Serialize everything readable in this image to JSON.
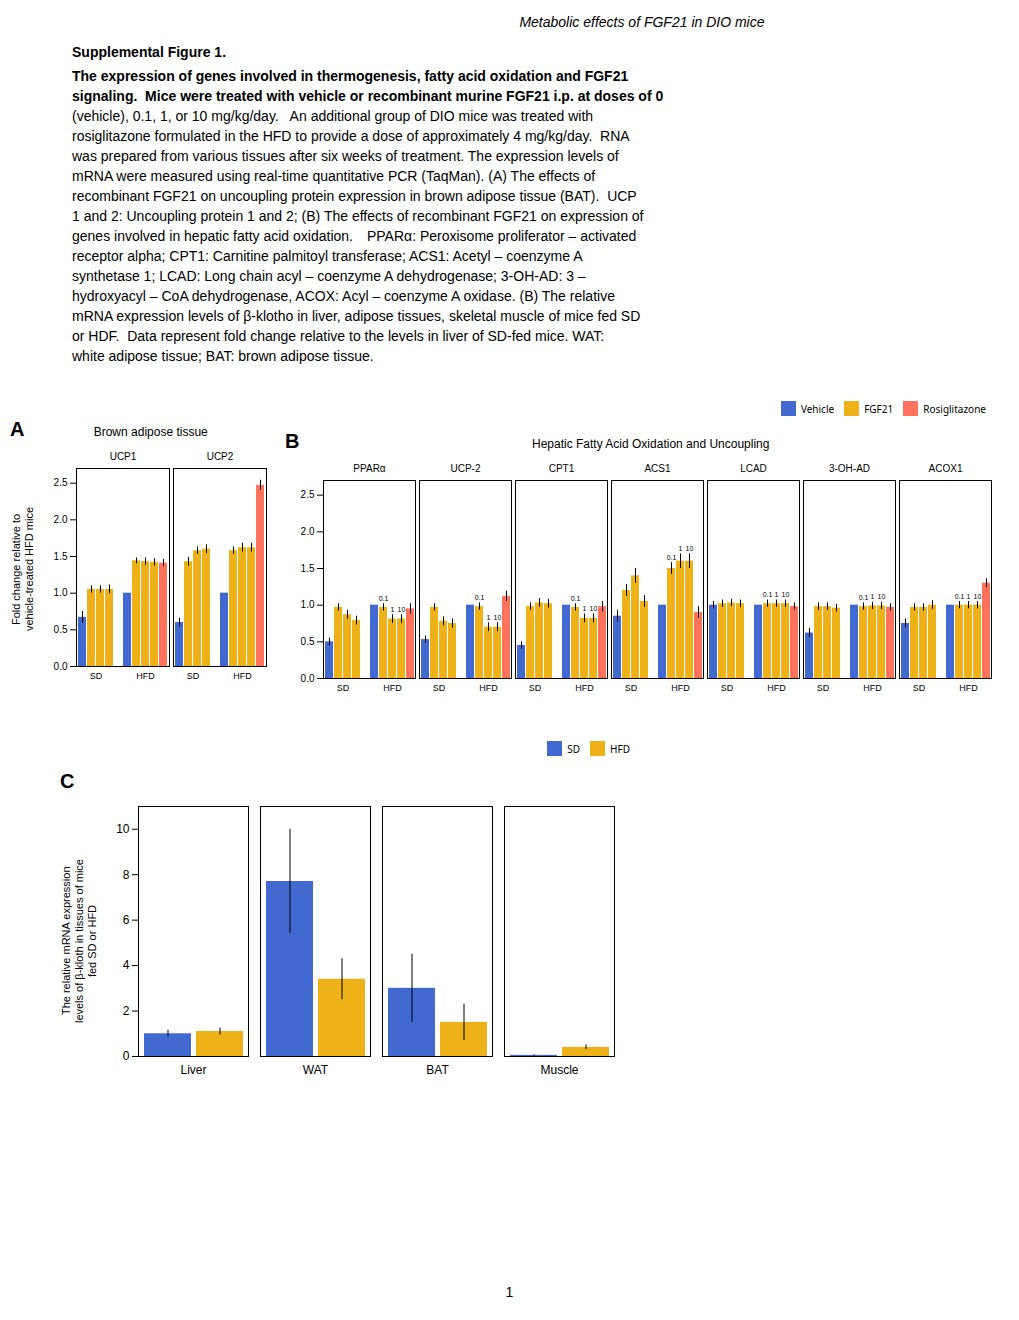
{
  "title": "Metabolic effects of FGF21 in DIO mice",
  "subtitle": "Supplemental Figure 1.",
  "caption_bold": [
    "The expression of genes involved in thermogenesis, fatty acid oxidation and FGF21",
    "signaling.  Mice were treated with vehicle or recombinant murine FGF21 i.p. at doses of 0"
  ],
  "caption": [
    "(vehicle), 0.1, 1, or 10 mg/kg/day.   An additional group of DIO mice was treated with",
    "rosiglitazone formulated in the HFD to provide a dose of approximately 4 mg/kg/day.  RNA",
    "was prepared from various tissues after six weeks of treatment. The expression levels of",
    "mRNA were measured using real-time quantitative PCR (TaqMan). (A) The effects of",
    "recombinant FGF21 on uncoupling protein expression in brown adipose tissue (BAT).  UCP",
    "1 and 2: Uncoupling protein 1 and 2; (B) The effects of recombinant FGF21 on expression of",
    "genes involved in hepatic fatty acid oxidation. PPARα: Peroxisome proliferator – activated",
    "receptor alpha; CPT1: Carnitine palmitoyl transferase; ACS1: Acetyl – coenzyme A",
    "synthetase 1; LCAD: Long chain acyl – coenzyme A dehydrogenase; 3-OH-AD: 3 –",
    "hydroxyacyl – CoA dehydrogenase, ACOX: Acyl – coenzyme A oxidase. (B) The relative",
    "mRNA expression levels of β-klotho in liver, adipose tissues, skeletal muscle of mice fed SD",
    "or HDF.  Data represent fold change relative to the levels in liver of SD-fed mice. WAT:",
    "white adipose tissue; BAT: brown adipose tissue."
  ],
  "page_number": "1",
  "chart_data": [
    {
      "type": "bar",
      "panel_label": "A",
      "title": "Brown adipose tissue",
      "ylabel": "Fold change relative to\nvehicle-treated HFD mice",
      "ylim": [
        0,
        2.7
      ],
      "yticks": [
        {
          "value": 0,
          "label": "0.0"
        },
        0.5,
        {
          "value": 1,
          "label": "1.0"
        },
        1.5,
        {
          "value": 2,
          "label": "2.0"
        },
        2.5
      ],
      "categories": [
        "UCP1",
        "UCP2"
      ],
      "series": [
        {
          "name": "SD",
          "treatments": [
            "Vehicle",
            "FGF21",
            "FGF21",
            "FGF21"
          ],
          "values": [
            [
              0.67,
              1.05,
              1.05,
              1.05
            ],
            [
              0.6,
              1.43,
              1.58,
              1.6
            ]
          ],
          "errors": [
            [
              0.08,
              0.05,
              0.05,
              0.06
            ],
            [
              0.06,
              0.06,
              0.05,
              0.06
            ]
          ]
        },
        {
          "name": "HFD",
          "treatments": [
            "Vehicle",
            "FGF21",
            "FGF21",
            "FGF21",
            "Rosiglitazone"
          ],
          "values": [
            [
              1.0,
              1.44,
              1.43,
              1.42,
              1.41
            ],
            [
              1.0,
              1.58,
              1.62,
              1.62,
              2.47
            ]
          ],
          "errors": [
            [
              0.0,
              0.04,
              0.05,
              0.05,
              0.05
            ],
            [
              0.0,
              0.05,
              0.06,
              0.06,
              0.07
            ]
          ]
        }
      ]
    },
    {
      "type": "bar",
      "panel_label": "B",
      "title": "Hepatic Fatty Acid Oxidation and Uncoupling",
      "legend": "upper right",
      "ylim": [
        0,
        2.7
      ],
      "yticks": [
        {
          "value": 0,
          "label": "0.0"
        },
        0.5,
        {
          "value": 1,
          "label": "1.0"
        },
        1.5,
        {
          "value": 2,
          "label": "2.0"
        },
        2.5
      ],
      "categories": [
        "PPARα",
        "UCP-2",
        "CPT1",
        "ACS1",
        "LCAD",
        "3-OH-AD",
        "ACOX1"
      ],
      "series": [
        {
          "name": "SD",
          "treatments": [
            "Vehicle",
            "FGF21",
            "FGF21",
            "FGF21"
          ],
          "values": [
            [
              0.5,
              0.97,
              0.87,
              0.79
            ],
            [
              0.53,
              0.97,
              0.78,
              0.75
            ],
            [
              0.45,
              0.98,
              1.03,
              1.02
            ],
            [
              0.85,
              1.2,
              1.4,
              1.05
            ],
            [
              1.0,
              1.02,
              1.03,
              1.02
            ],
            [
              0.62,
              0.98,
              0.98,
              0.96
            ],
            [
              0.75,
              0.97,
              0.97,
              1.0
            ]
          ],
          "errors": [
            [
              0.05,
              0.05,
              0.06,
              0.06
            ],
            [
              0.05,
              0.05,
              0.06,
              0.06
            ],
            [
              0.05,
              0.05,
              0.06,
              0.06
            ],
            [
              0.08,
              0.08,
              0.1,
              0.08
            ],
            [
              0.05,
              0.05,
              0.05,
              0.05
            ],
            [
              0.06,
              0.05,
              0.05,
              0.05
            ],
            [
              0.06,
              0.05,
              0.05,
              0.06
            ]
          ]
        },
        {
          "name": "HFD",
          "treatments": [
            "Vehicle",
            "FGF21",
            "FGF21",
            "FGF21",
            "Rosiglitazone"
          ],
          "bar_labels": [
            null,
            "0.1",
            "1",
            "10",
            null
          ],
          "values": [
            [
              1.0,
              0.97,
              0.81,
              0.81,
              0.95
            ],
            [
              1.0,
              0.98,
              0.7,
              0.7,
              1.12
            ],
            [
              1.0,
              0.97,
              0.82,
              0.82,
              0.98
            ],
            [
              1.0,
              1.5,
              1.6,
              1.6,
              0.9
            ],
            [
              1.0,
              1.02,
              1.02,
              1.02,
              0.98
            ],
            [
              1.0,
              0.98,
              0.99,
              0.99,
              0.97
            ],
            [
              1.0,
              1.0,
              1.0,
              1.0,
              1.3
            ]
          ],
          "errors": [
            [
              0.0,
              0.05,
              0.06,
              0.06,
              0.07
            ],
            [
              0.0,
              0.05,
              0.06,
              0.06,
              0.07
            ],
            [
              0.0,
              0.05,
              0.06,
              0.06,
              0.07
            ],
            [
              0.0,
              0.08,
              0.1,
              0.1,
              0.08
            ],
            [
              0.0,
              0.05,
              0.05,
              0.05,
              0.05
            ],
            [
              0.0,
              0.05,
              0.05,
              0.05,
              0.05
            ],
            [
              0.0,
              0.05,
              0.05,
              0.05,
              0.06
            ]
          ]
        }
      ]
    },
    {
      "type": "bar",
      "panel_label": "C",
      "legend": "upper right",
      "ylabel": "The relative mRNA expression\nlevels of β-kloth in tissues of mice\nfed SD or HFD",
      "ylim": [
        0,
        11
      ],
      "yticks": [
        0,
        2,
        4,
        6,
        8,
        10
      ],
      "categories": [
        "Liver",
        "WAT",
        "BAT",
        "Muscle"
      ],
      "series": [
        {
          "name": "SD",
          "values": [
            1.0,
            7.7,
            3.0,
            0.05
          ],
          "errors": [
            0.15,
            2.3,
            1.5,
            0.03
          ]
        },
        {
          "name": "HFD",
          "values": [
            1.1,
            3.4,
            1.5,
            0.4
          ],
          "errors": [
            0.15,
            0.9,
            0.8,
            0.1
          ]
        }
      ]
    }
  ]
}
